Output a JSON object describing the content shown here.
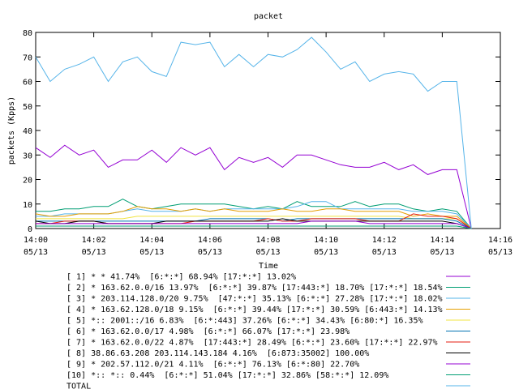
{
  "chart_data": {
    "type": "line",
    "title": "packet",
    "x_label": "Time",
    "y_label": "packets (Kpps)",
    "x": [
      "05/13 14:00:00",
      "05/13 14:00:30",
      "05/13 14:01:00",
      "05/13 14:01:30",
      "05/13 14:02:00",
      "05/13 14:02:30",
      "05/13 14:03:00",
      "05/13 14:03:30",
      "05/13 14:04:00",
      "05/13 14:04:30",
      "05/13 14:05:00",
      "05/13 14:05:30",
      "05/13 14:06:00",
      "05/13 14:06:30",
      "05/13 14:07:00",
      "05/13 14:07:30",
      "05/13 14:08:00",
      "05/13 14:08:30",
      "05/13 14:09:00",
      "05/13 14:09:30",
      "05/13 14:10:00",
      "05/13 14:10:30",
      "05/13 14:11:00",
      "05/13 14:11:30",
      "05/13 14:12:00",
      "05/13 14:12:30",
      "05/13 14:13:00",
      "05/13 14:13:30",
      "05/13 14:14:00",
      "05/13 14:14:30",
      "05/13 14:15:00"
    ],
    "xlim": [
      "05/13 14:00",
      "05/13 14:16"
    ],
    "xticks": [
      {
        "value": "05/13 14:00",
        "label": [
          "14:00",
          "05/13"
        ]
      },
      {
        "value": "05/13 14:02",
        "label": [
          "14:02",
          "05/13"
        ]
      },
      {
        "value": "05/13 14:04",
        "label": [
          "14:04",
          "05/13"
        ]
      },
      {
        "value": "05/13 14:06",
        "label": [
          "14:06",
          "05/13"
        ]
      },
      {
        "value": "05/13 14:08",
        "label": [
          "14:08",
          "05/13"
        ]
      },
      {
        "value": "05/13 14:10",
        "label": [
          "14:10",
          "05/13"
        ]
      },
      {
        "value": "05/13 14:12",
        "label": [
          "14:12",
          "05/13"
        ]
      },
      {
        "value": "05/13 14:14",
        "label": [
          "14:14",
          "05/13"
        ]
      },
      {
        "value": "05/13 14:16",
        "label": [
          "14:16",
          "05/13"
        ]
      }
    ],
    "ylim": [
      0,
      80
    ],
    "yticks": [
      0,
      10,
      20,
      30,
      40,
      50,
      60,
      70,
      80
    ],
    "grid": false,
    "series": [
      {
        "name": "[ 1] * * 41.74%  [6:*:*] 68.94% [17:*:*] 13.02%",
        "color": "#9400d3",
        "values": [
          33,
          29,
          34,
          30,
          32,
          25,
          28,
          28,
          32,
          27,
          33,
          30,
          33,
          24,
          29,
          27,
          29,
          25,
          30,
          30,
          28,
          26,
          25,
          25,
          27,
          24,
          26,
          22,
          24,
          24,
          0
        ]
      },
      {
        "name": "[ 2] * 163.62.0.0/16 13.97%  [6:*:*] 39.87% [17:443:*] 18.70% [17:*:*] 18.54%",
        "color": "#009e73",
        "values": [
          7,
          7,
          8,
          8,
          9,
          9,
          12,
          9,
          8,
          9,
          10,
          10,
          10,
          10,
          9,
          8,
          9,
          8,
          11,
          9,
          9,
          9,
          11,
          9,
          10,
          10,
          8,
          7,
          8,
          7,
          0
        ]
      },
      {
        "name": "[ 3] * 203.114.128.0/20 9.75%  [47:*:*] 35.13% [6:*:*] 27.28% [17:*:*] 18.02%",
        "color": "#56b4e9",
        "values": [
          5,
          5,
          6,
          6,
          6,
          6,
          7,
          8,
          7,
          7,
          7,
          8,
          7,
          8,
          8,
          8,
          8,
          8,
          9,
          11,
          11,
          8,
          8,
          8,
          8,
          8,
          7,
          7,
          7,
          6,
          0
        ]
      },
      {
        "name": "[ 4] * 163.62.128.0/18 9.15%  [6:*:*] 39.44% [17:*:*] 30.59% [6:443:*] 14.13%",
        "color": "#e69f00",
        "values": [
          6,
          5,
          5,
          6,
          6,
          6,
          7,
          9,
          8,
          8,
          7,
          8,
          7,
          8,
          7,
          7,
          7,
          8,
          7,
          7,
          8,
          8,
          7,
          7,
          7,
          7,
          5,
          6,
          5,
          5,
          0
        ]
      },
      {
        "name": "[ 5] *:: 2001::/16 6.83%  [6:*:443] 37.26% [6:*:*] 34.43% [6:80:*] 16.35%",
        "color": "#f0e442",
        "values": [
          4,
          4,
          4,
          4,
          4,
          4,
          4,
          5,
          5,
          5,
          5,
          5,
          5,
          5,
          5,
          5,
          5,
          5,
          5,
          5,
          5,
          5,
          5,
          5,
          5,
          5,
          4,
          4,
          4,
          4,
          0
        ]
      },
      {
        "name": "[ 6] * 163.62.0.0/17 4.98%  [6:*:*] 66.07% [17:*:*] 23.98%",
        "color": "#0072b2",
        "values": [
          3,
          3,
          3,
          3,
          3,
          3,
          3,
          3,
          3,
          3,
          3,
          3,
          4,
          4,
          4,
          4,
          4,
          3,
          4,
          4,
          4,
          4,
          4,
          4,
          4,
          4,
          4,
          4,
          4,
          3,
          0
        ]
      },
      {
        "name": "[ 7] * 163.62.0.0/22 4.87%  [17:443:*] 28.49% [6:*:*] 23.60% [17:*:*] 22.97%",
        "color": "#e51e10",
        "values": [
          2,
          2,
          3,
          3,
          3,
          2,
          2,
          2,
          2,
          2,
          2,
          3,
          3,
          3,
          3,
          3,
          4,
          3,
          3,
          4,
          4,
          4,
          4,
          3,
          3,
          3,
          6,
          5,
          5,
          4,
          0
        ]
      },
      {
        "name": "[ 8] 38.86.63.208 203.114.143.184 4.16%  [6:873:35002] 100.00%",
        "color": "#000000",
        "values": [
          3,
          2,
          2,
          3,
          3,
          2,
          2,
          2,
          2,
          3,
          3,
          3,
          3,
          3,
          3,
          3,
          3,
          4,
          3,
          3,
          3,
          3,
          3,
          3,
          3,
          3,
          3,
          3,
          3,
          2,
          0
        ]
      },
      {
        "name": "[ 9] * 202.57.112.0/21 4.11%  [6:*:*] 76.13% [6:*:80] 22.70%",
        "color": "#9400d3",
        "values": [
          2,
          2,
          2,
          2,
          2,
          2,
          2,
          2,
          2,
          2,
          2,
          2,
          2,
          2,
          2,
          2,
          2,
          2,
          2,
          3,
          3,
          3,
          3,
          2,
          2,
          2,
          2,
          2,
          2,
          2,
          0
        ]
      },
      {
        "name": "[10] *:: *:: 0.44%  [6:*:*] 51.04% [17:*:*] 32.86% [58:*:*] 12.09%",
        "color": "#009e73",
        "values": [
          1,
          1,
          1,
          1,
          1,
          1,
          1,
          1,
          1,
          1,
          1,
          1,
          1,
          1,
          1,
          1,
          1,
          1,
          1,
          1,
          1,
          1,
          1,
          1,
          1,
          1,
          1,
          1,
          1,
          1,
          0
        ]
      },
      {
        "name": "TOTAL",
        "color": "#56b4e9",
        "values": [
          70,
          60,
          65,
          67,
          70,
          60,
          68,
          70,
          64,
          62,
          76,
          75,
          76,
          66,
          71,
          66,
          71,
          70,
          73,
          78,
          72,
          65,
          68,
          60,
          63,
          64,
          63,
          56,
          60,
          60,
          0
        ]
      }
    ]
  }
}
